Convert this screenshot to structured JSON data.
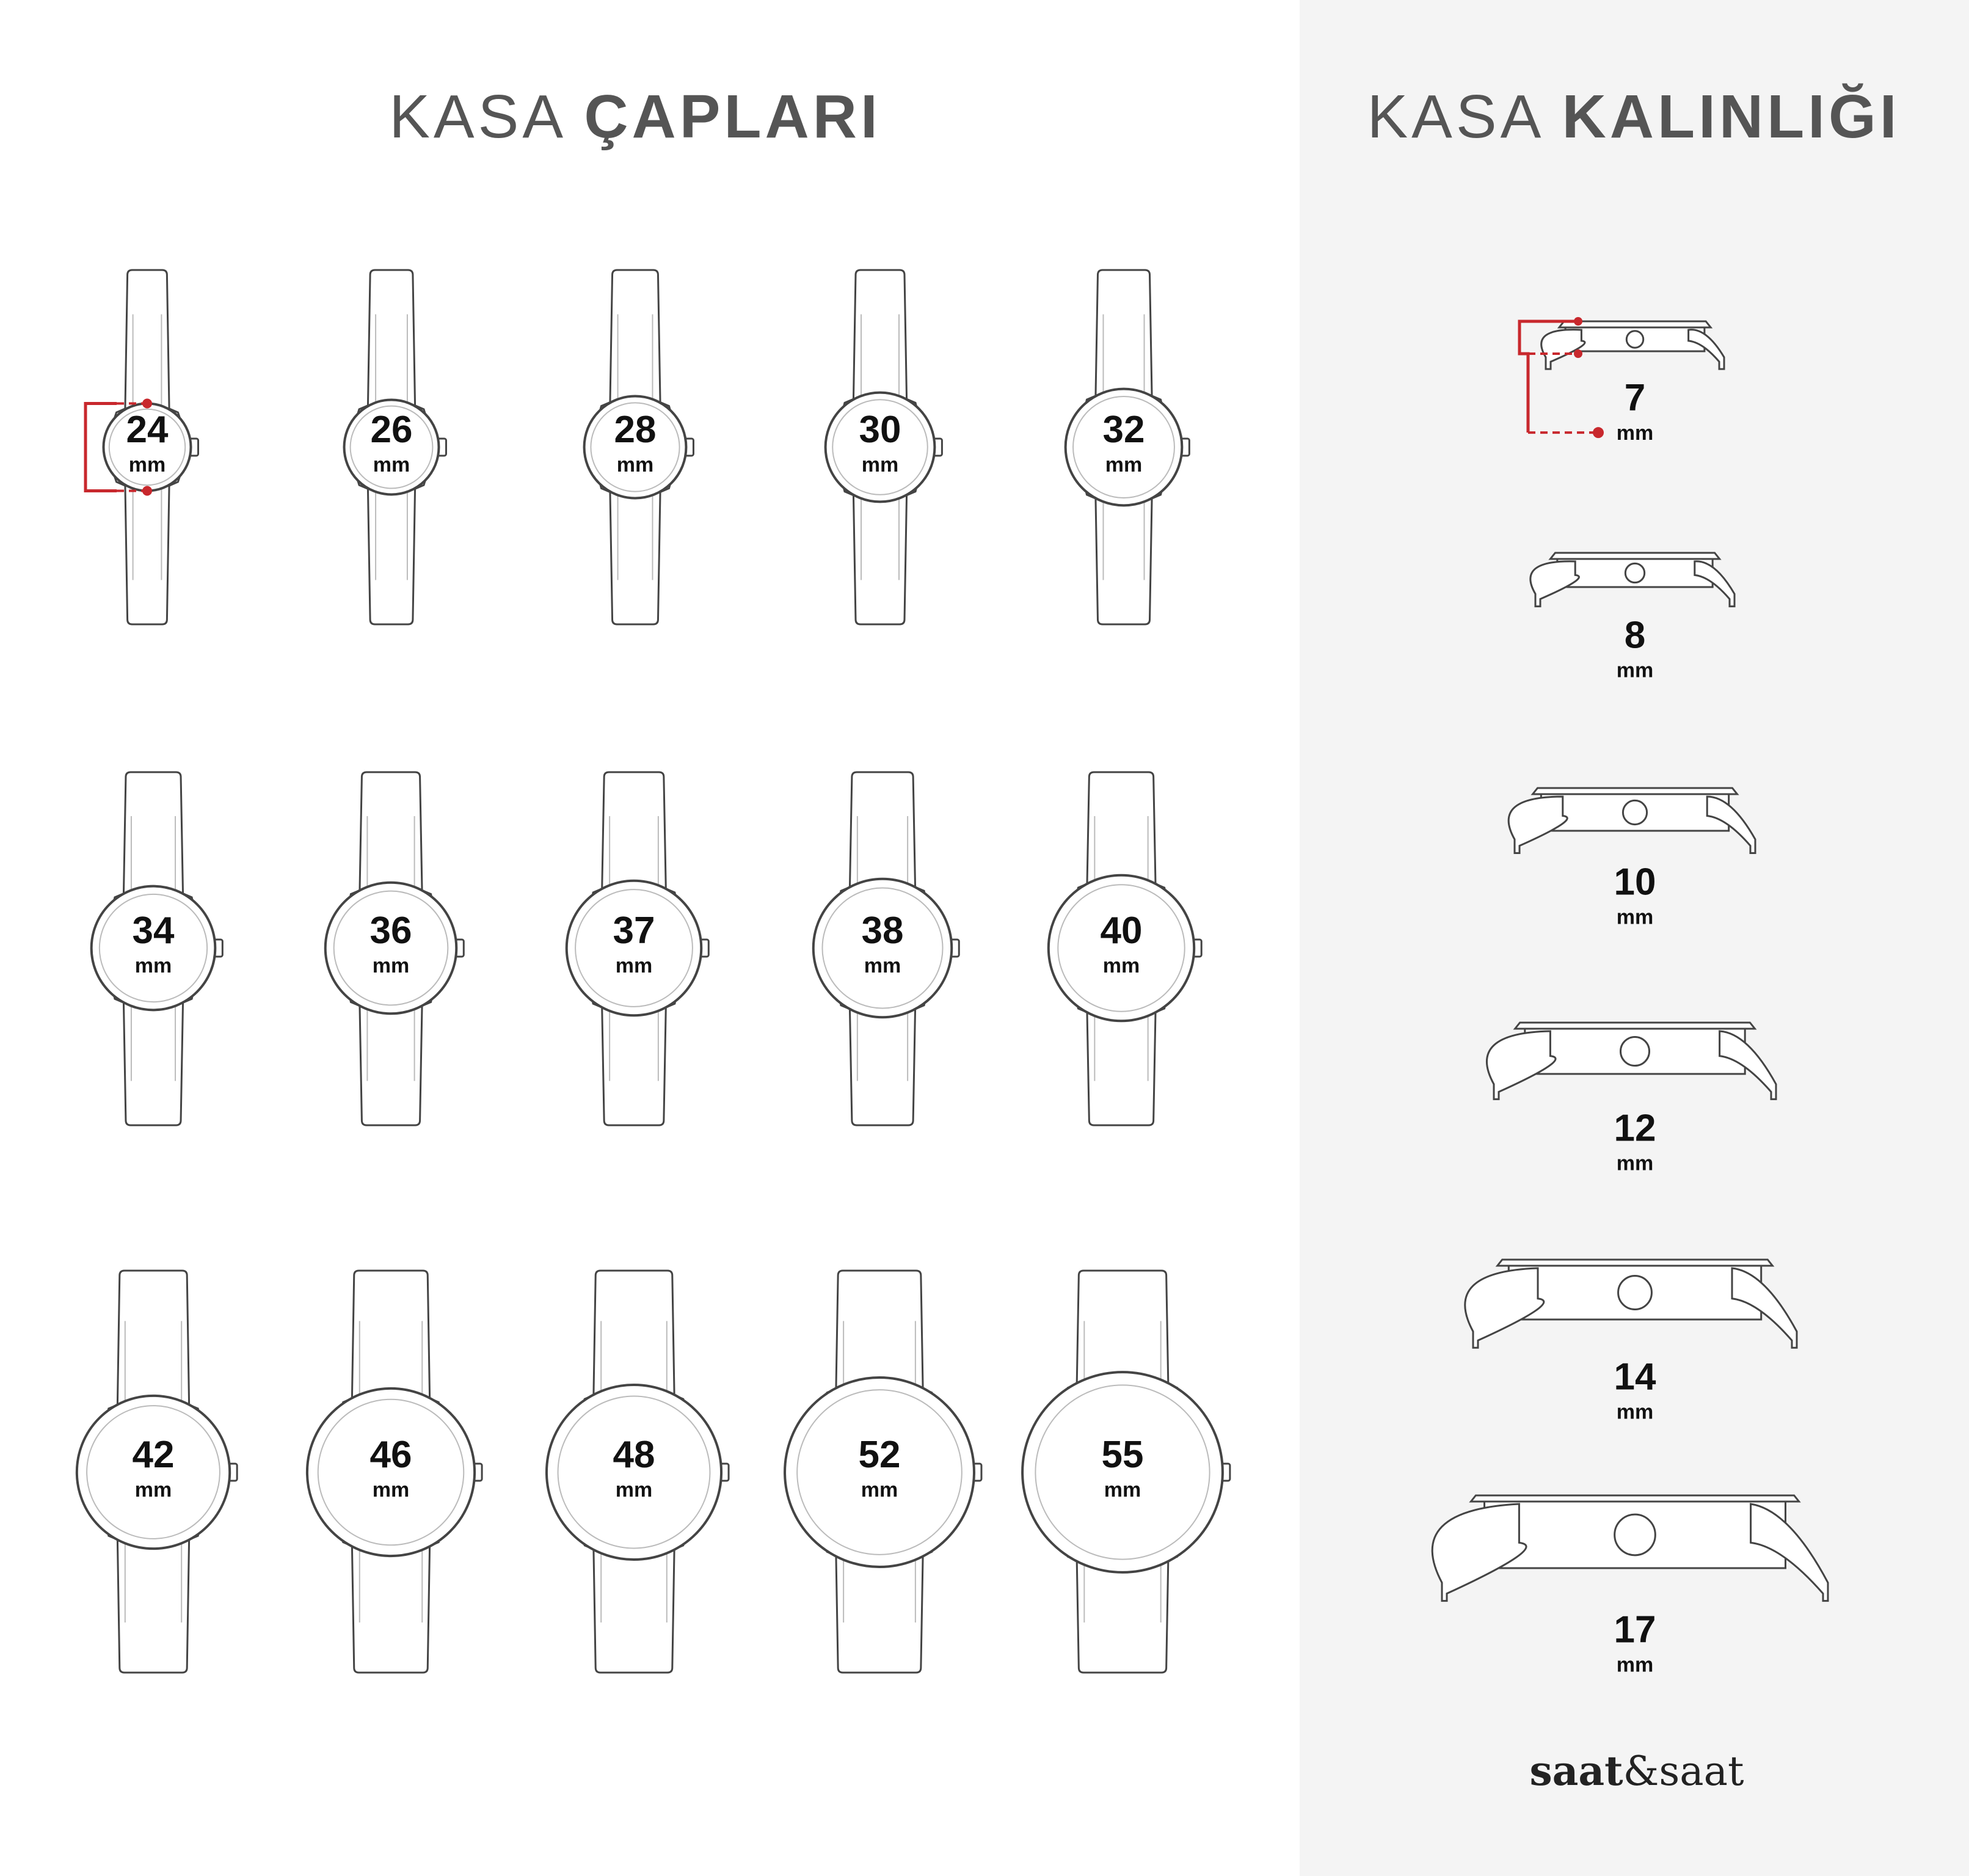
{
  "left_panel": {
    "title_light": "KASA",
    "title_bold": "ÇAPLARI",
    "rows": [
      [
        24,
        26,
        28,
        30,
        32
      ],
      [
        34,
        36,
        37,
        38,
        40
      ],
      [
        42,
        46,
        48,
        52,
        55
      ]
    ]
  },
  "right_panel": {
    "title_light": "KASA",
    "title_bold": "KALINLIĞI",
    "thicknesses": [
      7,
      8,
      10,
      12,
      14,
      17
    ]
  },
  "unit": "mm",
  "logo": {
    "bold": "saat",
    "amp": "&",
    "light": "saat"
  },
  "colors": {
    "accent_red": "#c8282d",
    "line": "#444444",
    "panel_bg": "#f4f4f4",
    "title": "#555555"
  }
}
